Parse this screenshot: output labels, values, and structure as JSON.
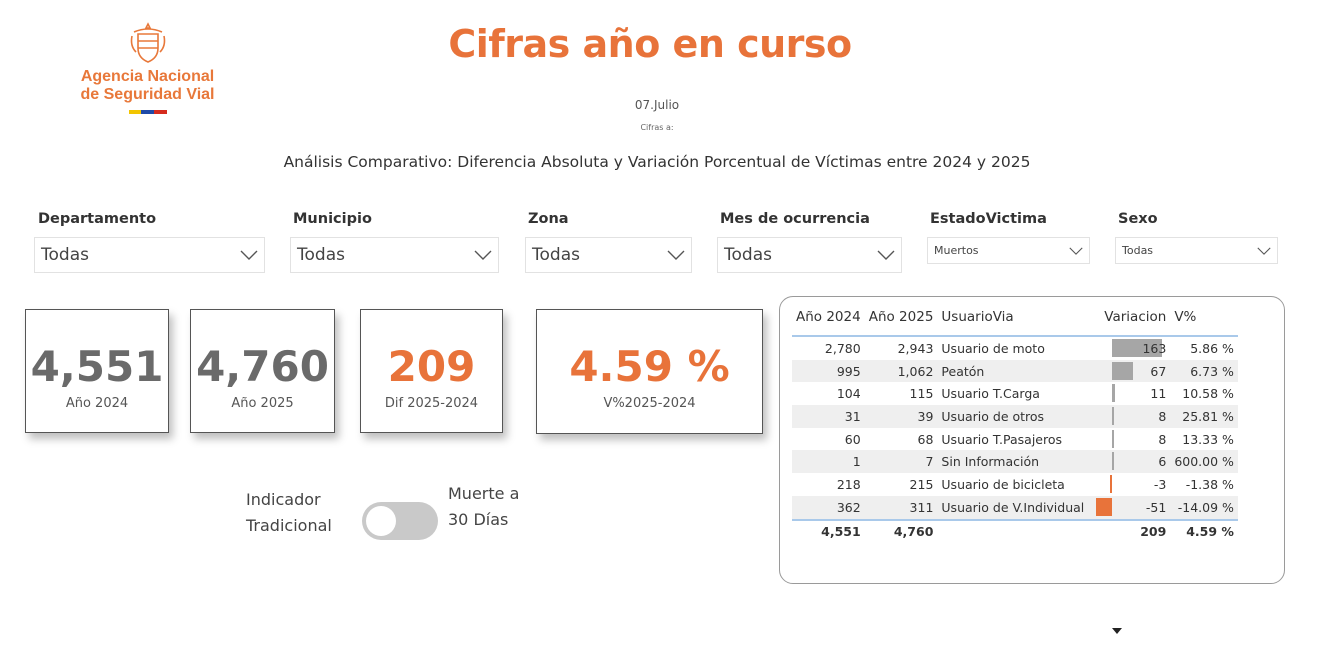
{
  "logo": {
    "line1": "Agencia Nacional",
    "line2": "de Seguridad Vial",
    "icon": "coat-of-arms-icon",
    "flag_colors": [
      "#f2c500",
      "#1f4aa8",
      "#d52b1e"
    ]
  },
  "header": {
    "title": "Cifras año en curso",
    "date": "07.Julio",
    "note": "Cifras a:",
    "subtitle": "Análisis Comparativo: Diferencia Absoluta y Variación Porcentual de Víctimas entre 2024 y 2025"
  },
  "filters": [
    {
      "label": "Departamento",
      "value": "Todas"
    },
    {
      "label": "Municipio",
      "value": "Todas"
    },
    {
      "label": "Zona",
      "value": "Todas"
    },
    {
      "label": "Mes de ocurrencia",
      "value": "Todas"
    },
    {
      "label": "EstadoVictima",
      "value": "Muertos"
    },
    {
      "label": "Sexo",
      "value": "Todas"
    }
  ],
  "kpis": [
    {
      "value": "4,551",
      "label": "Año 2024"
    },
    {
      "value": "4,760",
      "label": "Año 2025"
    },
    {
      "value": "209",
      "label": "Dif 2025-2024"
    },
    {
      "value": "4.59 %",
      "label": "V%2025-2024"
    }
  ],
  "toggle": {
    "left_line1": "Indicador",
    "left_line2": "Tradicional",
    "right_line1": "Muerte a",
    "right_line2": "30 Días",
    "state": "off"
  },
  "table": {
    "headers": [
      "Año 2024",
      "Año 2025",
      "UsuarioVia",
      "Variacion",
      "V%"
    ],
    "sorted_column": "Variacion",
    "rows": [
      {
        "y2024": "2,780",
        "y2025": "2,943",
        "usuario": "Usuario de moto",
        "variacion": "163",
        "v": "5.86 %",
        "var_num": 163
      },
      {
        "y2024": "995",
        "y2025": "1,062",
        "usuario": "Peatón",
        "variacion": "67",
        "v": "6.73 %",
        "var_num": 67
      },
      {
        "y2024": "104",
        "y2025": "115",
        "usuario": "Usuario T.Carga",
        "variacion": "11",
        "v": "10.58 %",
        "var_num": 11
      },
      {
        "y2024": "31",
        "y2025": "39",
        "usuario": "Usuario de otros",
        "variacion": "8",
        "v": "25.81 %",
        "var_num": 8
      },
      {
        "y2024": "60",
        "y2025": "68",
        "usuario": "Usuario T.Pasajeros",
        "variacion": "8",
        "v": "13.33 %",
        "var_num": 8
      },
      {
        "y2024": "1",
        "y2025": "7",
        "usuario": "Sin Información",
        "variacion": "6",
        "v": "600.00 %",
        "var_num": 6
      },
      {
        "y2024": "218",
        "y2025": "215",
        "usuario": "Usuario de bicicleta",
        "variacion": "-3",
        "v": "-1.38 %",
        "var_num": -3
      },
      {
        "y2024": "362",
        "y2025": "311",
        "usuario": "Usuario de V.Individual",
        "variacion": "-51",
        "v": "-14.09 %",
        "var_num": -51
      }
    ],
    "total": {
      "y2024": "4,551",
      "y2025": "4,760",
      "usuario": "",
      "variacion": "209",
      "v": "4.59 %"
    },
    "colors": {
      "positive_bar": "#a6a6a6",
      "negative_bar": "#e8733a"
    }
  }
}
